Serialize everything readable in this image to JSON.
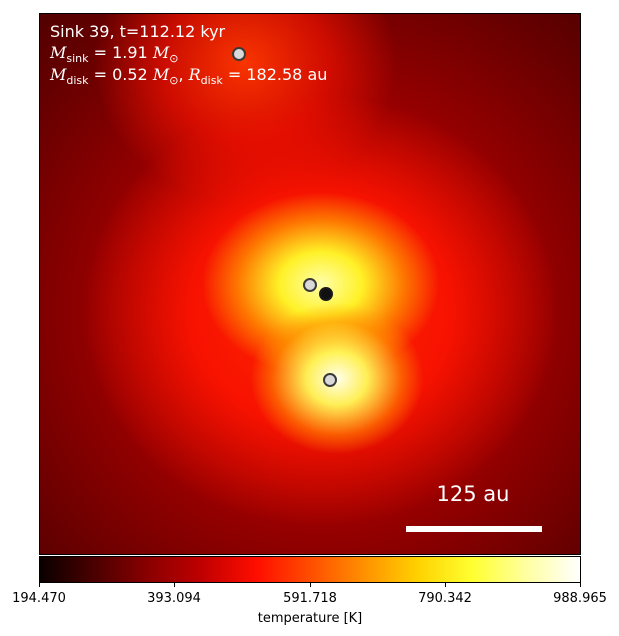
{
  "annotation": {
    "line1": "Sink 39, t=112.12 kyr",
    "sink_mass_label": "M",
    "sink_mass_sub": "sink",
    "sink_mass_value": " = 1.91 ",
    "disk_mass_label": "M",
    "disk_mass_sub": "disk",
    "disk_mass_value": " = 0.52 ",
    "disk_radius_sep": ", ",
    "disk_radius_label": "R",
    "disk_radius_sub": "disk",
    "disk_radius_value": " = 182.58 au",
    "solar_mass_symbol": "M",
    "solar_sub": "⊙"
  },
  "scale_bar": {
    "label": "125 au"
  },
  "colorbar": {
    "ticks": [
      "194.470",
      "393.094",
      "591.718",
      "790.342",
      "988.965"
    ],
    "label": "temperature [K]",
    "colormap": "hot",
    "min": 194.47,
    "max": 988.965
  },
  "sinks": [
    {
      "name": "sink-top",
      "style": "light"
    },
    {
      "name": "sink-center-left",
      "style": "light"
    },
    {
      "name": "sink-center-main",
      "style": "dark"
    },
    {
      "name": "sink-lower",
      "style": "light"
    }
  ]
}
